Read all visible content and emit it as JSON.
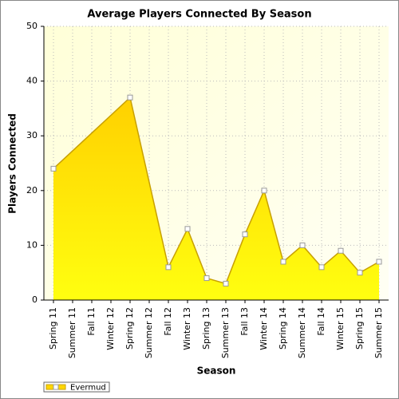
{
  "chart_data": {
    "type": "area",
    "title": "Average Players Connected By Season",
    "x_label": "Season",
    "y_label": "Players Connected",
    "categories": [
      "Spring 11",
      "Summer 11",
      "Fall 11",
      "Winter 12",
      "Spring 12",
      "Summer 12",
      "Fall 12",
      "Winter 13",
      "Spring 13",
      "Summer 13",
      "Fall 13",
      "Winter 14",
      "Spring 14",
      "Summer 14",
      "Fall 14",
      "Winter 15",
      "Spring 15",
      "Summer 15"
    ],
    "series": [
      {
        "name": "Evermud",
        "color": "#ffd700",
        "values": [
          24,
          null,
          null,
          null,
          37,
          null,
          6,
          13,
          4,
          3,
          12,
          20,
          7,
          10,
          6,
          9,
          5,
          7
        ]
      }
    ],
    "span_gaps": true,
    "ylim": [
      0,
      50
    ],
    "yticks": [
      0,
      10,
      20,
      30,
      40,
      50
    ],
    "grid": true,
    "legend": "bottom-left"
  }
}
